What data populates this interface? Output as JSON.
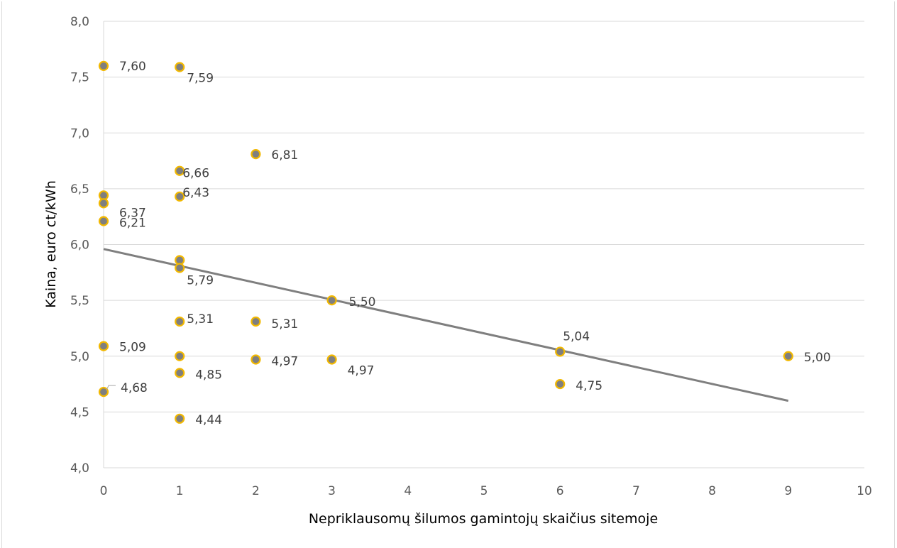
{
  "chart_data": {
    "type": "scatter",
    "title": "",
    "xlabel": "Nepriklausomų šilumos gamintojų skaičius sitemoje",
    "ylabel": "Kaina, euro ct/kWh",
    "xlim": [
      0,
      10
    ],
    "ylim": [
      4.0,
      8.0
    ],
    "x_ticks": [
      "0",
      "1",
      "2",
      "3",
      "4",
      "5",
      "6",
      "7",
      "8",
      "9",
      "10"
    ],
    "y_ticks": [
      "4,0",
      "4,5",
      "5,0",
      "5,5",
      "6,0",
      "6,5",
      "7,0",
      "7,5",
      "8,0"
    ],
    "grid": "horizontal",
    "marker_fill": "#7f7f7f",
    "marker_edge": "#f2b800",
    "trendline_color": "#7f7f7f",
    "trendline": {
      "x": [
        0,
        9
      ],
      "y": [
        5.96,
        4.6
      ]
    },
    "points": [
      {
        "x": 0,
        "y": 7.6,
        "label": "7,60"
      },
      {
        "x": 0,
        "y": 6.44,
        "label": ""
      },
      {
        "x": 0,
        "y": 6.37,
        "label": "6,37"
      },
      {
        "x": 0,
        "y": 6.21,
        "label": "6,21"
      },
      {
        "x": 0,
        "y": 5.09,
        "label": "5,09"
      },
      {
        "x": 0,
        "y": 4.68,
        "label": "4,68"
      },
      {
        "x": 1,
        "y": 7.59,
        "label": "7,59"
      },
      {
        "x": 1,
        "y": 6.66,
        "label": "6,66"
      },
      {
        "x": 1,
        "y": 6.43,
        "label": "6,43"
      },
      {
        "x": 1,
        "y": 5.86,
        "label": ""
      },
      {
        "x": 1,
        "y": 5.79,
        "label": "5,79"
      },
      {
        "x": 1,
        "y": 5.31,
        "label": "5,31"
      },
      {
        "x": 1,
        "y": 5.0,
        "label": ""
      },
      {
        "x": 1,
        "y": 4.85,
        "label": "4,85"
      },
      {
        "x": 1,
        "y": 4.44,
        "label": "4,44"
      },
      {
        "x": 2,
        "y": 6.81,
        "label": "6,81"
      },
      {
        "x": 2,
        "y": 5.31,
        "label": "5,31"
      },
      {
        "x": 2,
        "y": 4.97,
        "label": "4,97"
      },
      {
        "x": 3,
        "y": 5.5,
        "label": "5,50"
      },
      {
        "x": 3,
        "y": 4.97,
        "label": "4,97"
      },
      {
        "x": 6,
        "y": 5.04,
        "label": "5,04"
      },
      {
        "x": 6,
        "y": 4.75,
        "label": "4,75"
      },
      {
        "x": 9,
        "y": 5.0,
        "label": "5,00"
      }
    ]
  }
}
